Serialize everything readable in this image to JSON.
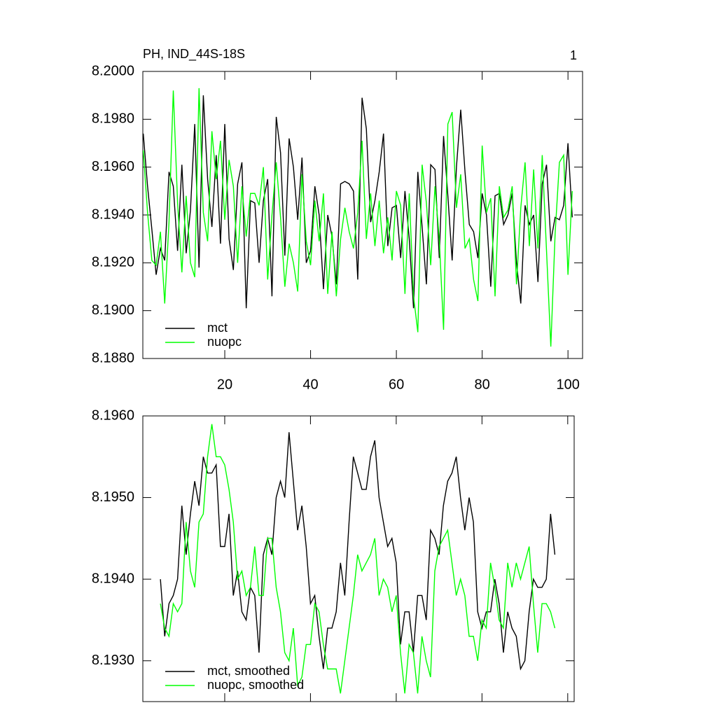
{
  "chart_data": [
    {
      "type": "line",
      "title": "PH, IND_44S-18S",
      "panel_label": "1",
      "x": [
        1,
        2,
        3,
        4,
        5,
        6,
        7,
        8,
        9,
        10,
        11,
        12,
        13,
        14,
        15,
        16,
        17,
        18,
        19,
        20,
        21,
        22,
        23,
        24,
        25,
        26,
        27,
        28,
        29,
        30,
        31,
        32,
        33,
        34,
        35,
        36,
        37,
        38,
        39,
        40,
        41,
        42,
        43,
        44,
        45,
        46,
        47,
        48,
        49,
        50,
        51,
        52,
        53,
        54,
        55,
        56,
        57,
        58,
        59,
        60,
        61,
        62,
        63,
        64,
        65,
        66,
        67,
        68,
        69,
        70,
        71,
        72,
        73,
        74,
        75,
        76,
        77,
        78,
        79,
        80,
        81,
        82,
        83,
        84,
        85,
        86,
        87,
        88,
        89,
        90,
        91,
        92,
        93,
        94,
        95,
        96,
        97,
        98,
        99,
        100,
        101
      ],
      "series": [
        {
          "name": "mct",
          "color": "#000000",
          "values": [
            8.1974,
            8.1952,
            8.1934,
            8.1915,
            8.1926,
            8.1921,
            8.1958,
            8.1952,
            8.1925,
            8.1961,
            8.1924,
            8.1942,
            8.1978,
            8.1918,
            8.199,
            8.1955,
            8.1935,
            8.1965,
            8.1928,
            8.1978,
            8.193,
            8.1917,
            8.1953,
            8.1962,
            8.1901,
            8.1946,
            8.1945,
            8.192,
            8.1946,
            8.1955,
            8.1906,
            8.1981,
            8.1966,
            8.1923,
            8.1972,
            8.196,
            8.1938,
            8.1964,
            8.192,
            8.1925,
            8.1952,
            8.194,
            8.1909,
            8.194,
            8.1931,
            8.1911,
            8.1953,
            8.1954,
            8.1953,
            8.195,
            8.1913,
            8.1989,
            8.1976,
            8.1937,
            8.1946,
            8.1958,
            8.1974,
            8.1927,
            8.1943,
            8.1944,
            8.1922,
            8.195,
            8.193,
            8.1901,
            8.1958,
            8.1935,
            8.1911,
            8.1961,
            8.1959,
            8.1922,
            8.1973,
            8.1948,
            8.1921,
            8.196,
            8.1984,
            8.1958,
            8.1936,
            8.1933,
            8.1922,
            8.1949,
            8.194,
            8.191,
            8.1948,
            8.1949,
            8.1936,
            8.194,
            8.1949,
            8.192,
            8.1903,
            8.1944,
            8.1936,
            8.194,
            8.1912,
            8.1953,
            8.1961,
            8.1929,
            8.1939,
            8.1938,
            8.1944,
            8.197,
            8.1939
          ]
        },
        {
          "name": "nuopc",
          "color": "#00ff00",
          "values": [
            8.1967,
            8.1941,
            8.1921,
            8.1919,
            8.1933,
            8.1903,
            8.1937,
            8.1992,
            8.1945,
            8.1916,
            8.1948,
            8.192,
            8.1914,
            8.1993,
            8.1941,
            8.1929,
            8.1975,
            8.1955,
            8.1971,
            8.1938,
            8.1963,
            8.1952,
            8.192,
            8.1952,
            8.1931,
            8.1949,
            8.1949,
            8.1944,
            8.196,
            8.1913,
            8.194,
            8.1962,
            8.1939,
            8.191,
            8.1928,
            8.192,
            8.1908,
            8.1957,
            8.1929,
            8.1919,
            8.1946,
            8.1929,
            8.1949,
            8.1907,
            8.1933,
            8.1906,
            8.193,
            8.1943,
            8.1933,
            8.1926,
            8.1941,
            8.1971,
            8.193,
            8.1949,
            8.1927,
            8.1946,
            8.1924,
            8.1939,
            8.1921,
            8.195,
            8.1944,
            8.1907,
            8.1949,
            8.1906,
            8.1891,
            8.1961,
            8.1945,
            8.1919,
            8.1952,
            8.193,
            8.1892,
            8.1978,
            8.1983,
            8.1943,
            8.1957,
            8.1926,
            8.193,
            8.1913,
            8.1904,
            8.1969,
            8.1941,
            8.1947,
            8.1906,
            8.1952,
            8.1939,
            8.1942,
            8.1952,
            8.1911,
            8.1943,
            8.1962,
            8.1927,
            8.1959,
            8.1926,
            8.1965,
            8.1925,
            8.1885,
            8.1932,
            8.1962,
            8.1965,
            8.1915,
            8.195
          ]
        }
      ],
      "xlim": [
        0.9,
        103.4
      ],
      "xticks": [
        20,
        40,
        60,
        80,
        100
      ],
      "xtick_labels": true,
      "ylim": [
        8.188,
        8.2
      ],
      "yticks": [
        {
          "value": 8.188,
          "label": "8.1880"
        },
        {
          "value": 8.19,
          "label": "8.1900"
        },
        {
          "value": 8.192,
          "label": "8.1920"
        },
        {
          "value": 8.194,
          "label": "8.1940"
        },
        {
          "value": 8.196,
          "label": "8.1960"
        },
        {
          "value": 8.198,
          "label": "8.1980"
        },
        {
          "value": 8.2,
          "label": "8.2000"
        }
      ],
      "legend": "lower left",
      "grid": false
    },
    {
      "type": "line",
      "x": [
        5,
        6,
        7,
        8,
        9,
        10,
        11,
        12,
        13,
        14,
        15,
        16,
        17,
        18,
        19,
        20,
        21,
        22,
        23,
        24,
        25,
        26,
        27,
        28,
        29,
        30,
        31,
        32,
        33,
        34,
        35,
        36,
        37,
        38,
        39,
        40,
        41,
        42,
        43,
        44,
        45,
        46,
        47,
        48,
        49,
        50,
        51,
        52,
        53,
        54,
        55,
        56,
        57,
        58,
        59,
        60,
        61,
        62,
        63,
        64,
        65,
        66,
        67,
        68,
        69,
        70,
        71,
        72,
        73,
        74,
        75,
        76,
        77,
        78,
        79,
        80,
        81,
        82,
        83,
        84,
        85,
        86,
        87,
        88,
        89,
        90,
        91,
        92,
        93,
        94,
        95,
        96,
        97
      ],
      "series": [
        {
          "name": "mct, smoothed",
          "color": "#000000",
          "values": [
            8.194,
            8.1933,
            8.1937,
            8.1938,
            8.194,
            8.1949,
            8.1943,
            8.1948,
            8.1952,
            8.1949,
            8.1955,
            8.1953,
            8.1953,
            8.1954,
            8.1944,
            8.1944,
            8.1948,
            8.1938,
            8.1941,
            8.1936,
            8.1935,
            8.1939,
            8.1938,
            8.1931,
            8.1943,
            8.1945,
            8.1943,
            8.195,
            8.1952,
            8.195,
            8.1958,
            8.1952,
            8.1946,
            8.1949,
            8.1944,
            8.1937,
            8.1938,
            8.1933,
            8.1929,
            8.1934,
            8.1934,
            8.1936,
            8.1942,
            8.1938,
            8.1947,
            8.1955,
            8.1953,
            8.1951,
            8.1951,
            8.1955,
            8.1957,
            8.195,
            8.1947,
            8.1944,
            8.1945,
            8.1942,
            8.1932,
            8.1936,
            8.1936,
            8.1931,
            8.1938,
            8.1938,
            8.1935,
            8.1946,
            8.1945,
            8.1943,
            8.1949,
            8.1952,
            8.1953,
            8.1955,
            8.195,
            8.1946,
            8.195,
            8.1947,
            8.1936,
            8.1934,
            8.1936,
            8.1936,
            8.194,
            8.1937,
            8.1931,
            8.1936,
            8.1934,
            8.1933,
            8.1929,
            8.193,
            8.1936,
            8.194,
            8.1939,
            8.1939,
            8.194,
            8.1948,
            8.1943
          ]
        },
        {
          "name": "nuopc, smoothed",
          "color": "#00ff00",
          "values": [
            8.1937,
            8.1934,
            8.1933,
            8.1937,
            8.1936,
            8.1937,
            8.1947,
            8.1941,
            8.1939,
            8.1947,
            8.1948,
            8.1955,
            8.1959,
            8.1955,
            8.1955,
            8.1954,
            8.1951,
            8.1947,
            8.194,
            8.1941,
            8.1938,
            8.1939,
            8.1944,
            8.1938,
            8.1938,
            8.1945,
            8.1945,
            8.1939,
            8.1936,
            8.1931,
            8.193,
            8.1934,
            8.1927,
            8.1928,
            8.1932,
            8.1932,
            8.1937,
            8.1936,
            8.1932,
            8.1929,
            8.1929,
            8.1929,
            8.1926,
            8.193,
            8.1934,
            8.1938,
            8.1943,
            8.1941,
            8.1942,
            8.1943,
            8.1945,
            8.1938,
            8.194,
            8.1939,
            8.1936,
            8.1938,
            8.1931,
            8.1926,
            8.1932,
            8.1931,
            8.1926,
            8.1933,
            8.193,
            8.1928,
            8.1941,
            8.1944,
            8.1945,
            8.1946,
            8.1942,
            8.1938,
            8.194,
            8.1938,
            8.1933,
            8.1933,
            8.193,
            8.1935,
            8.1934,
            8.1942,
            8.1939,
            8.1935,
            8.1934,
            8.1942,
            8.1939,
            8.1942,
            8.194,
            8.1942,
            8.1944,
            8.1937,
            8.1931,
            8.1937,
            8.1937,
            8.1936,
            8.1934
          ]
        }
      ],
      "xlim": [
        0.9,
        101.5
      ],
      "xticks": [
        20,
        40,
        60,
        80,
        100
      ],
      "xtick_labels": false,
      "ylim": [
        8.1925,
        8.196
      ],
      "yticks": [
        {
          "value": 8.193,
          "label": "8.1930"
        },
        {
          "value": 8.194,
          "label": "8.1940"
        },
        {
          "value": 8.195,
          "label": "8.1950"
        },
        {
          "value": 8.196,
          "label": "8.1960"
        }
      ],
      "legend": "lower left",
      "grid": false
    }
  ]
}
